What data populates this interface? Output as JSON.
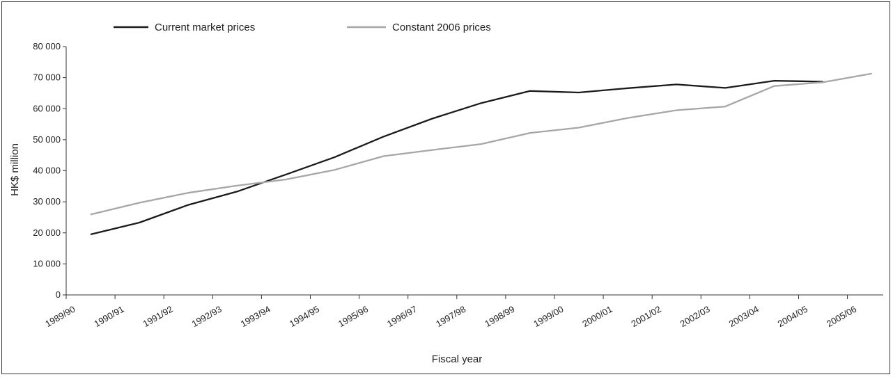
{
  "chart_data": {
    "type": "line",
    "title": "",
    "xlabel": "Fiscal year",
    "ylabel": "HK$ million",
    "ylim": [
      0,
      80000
    ],
    "yticks": [
      0,
      10000,
      20000,
      30000,
      40000,
      50000,
      60000,
      70000,
      80000
    ],
    "ytick_labels": [
      "0",
      "10 000",
      "20 000",
      "30 000",
      "40 000",
      "50 000",
      "60 000",
      "70 000",
      "80 000"
    ],
    "categories": [
      "1989/90",
      "1990/91",
      "1991/92",
      "1992/93",
      "1993/94",
      "1994/95",
      "1995/96",
      "1996/97",
      "1997/98",
      "1998/99",
      "1999/00",
      "2000/01",
      "2001/02",
      "2002/03",
      "2003/04",
      "2004/05",
      "2005/06"
    ],
    "grid": false,
    "legend_position": "top",
    "series": [
      {
        "name": "Current market prices",
        "color": "#1a1a1a",
        "values": [
          19500,
          23300,
          29000,
          33300,
          38800,
          44400,
          51000,
          56800,
          61800,
          65700,
          65200,
          66600,
          67800,
          66700,
          69000,
          68700,
          null
        ]
      },
      {
        "name": "Constant 2006 prices",
        "color": "#a6a6a6",
        "values": [
          25900,
          29700,
          32900,
          35200,
          37200,
          40300,
          44700,
          46700,
          48600,
          52200,
          53900,
          57000,
          59500,
          60700,
          67300,
          68500,
          71300
        ]
      }
    ]
  }
}
